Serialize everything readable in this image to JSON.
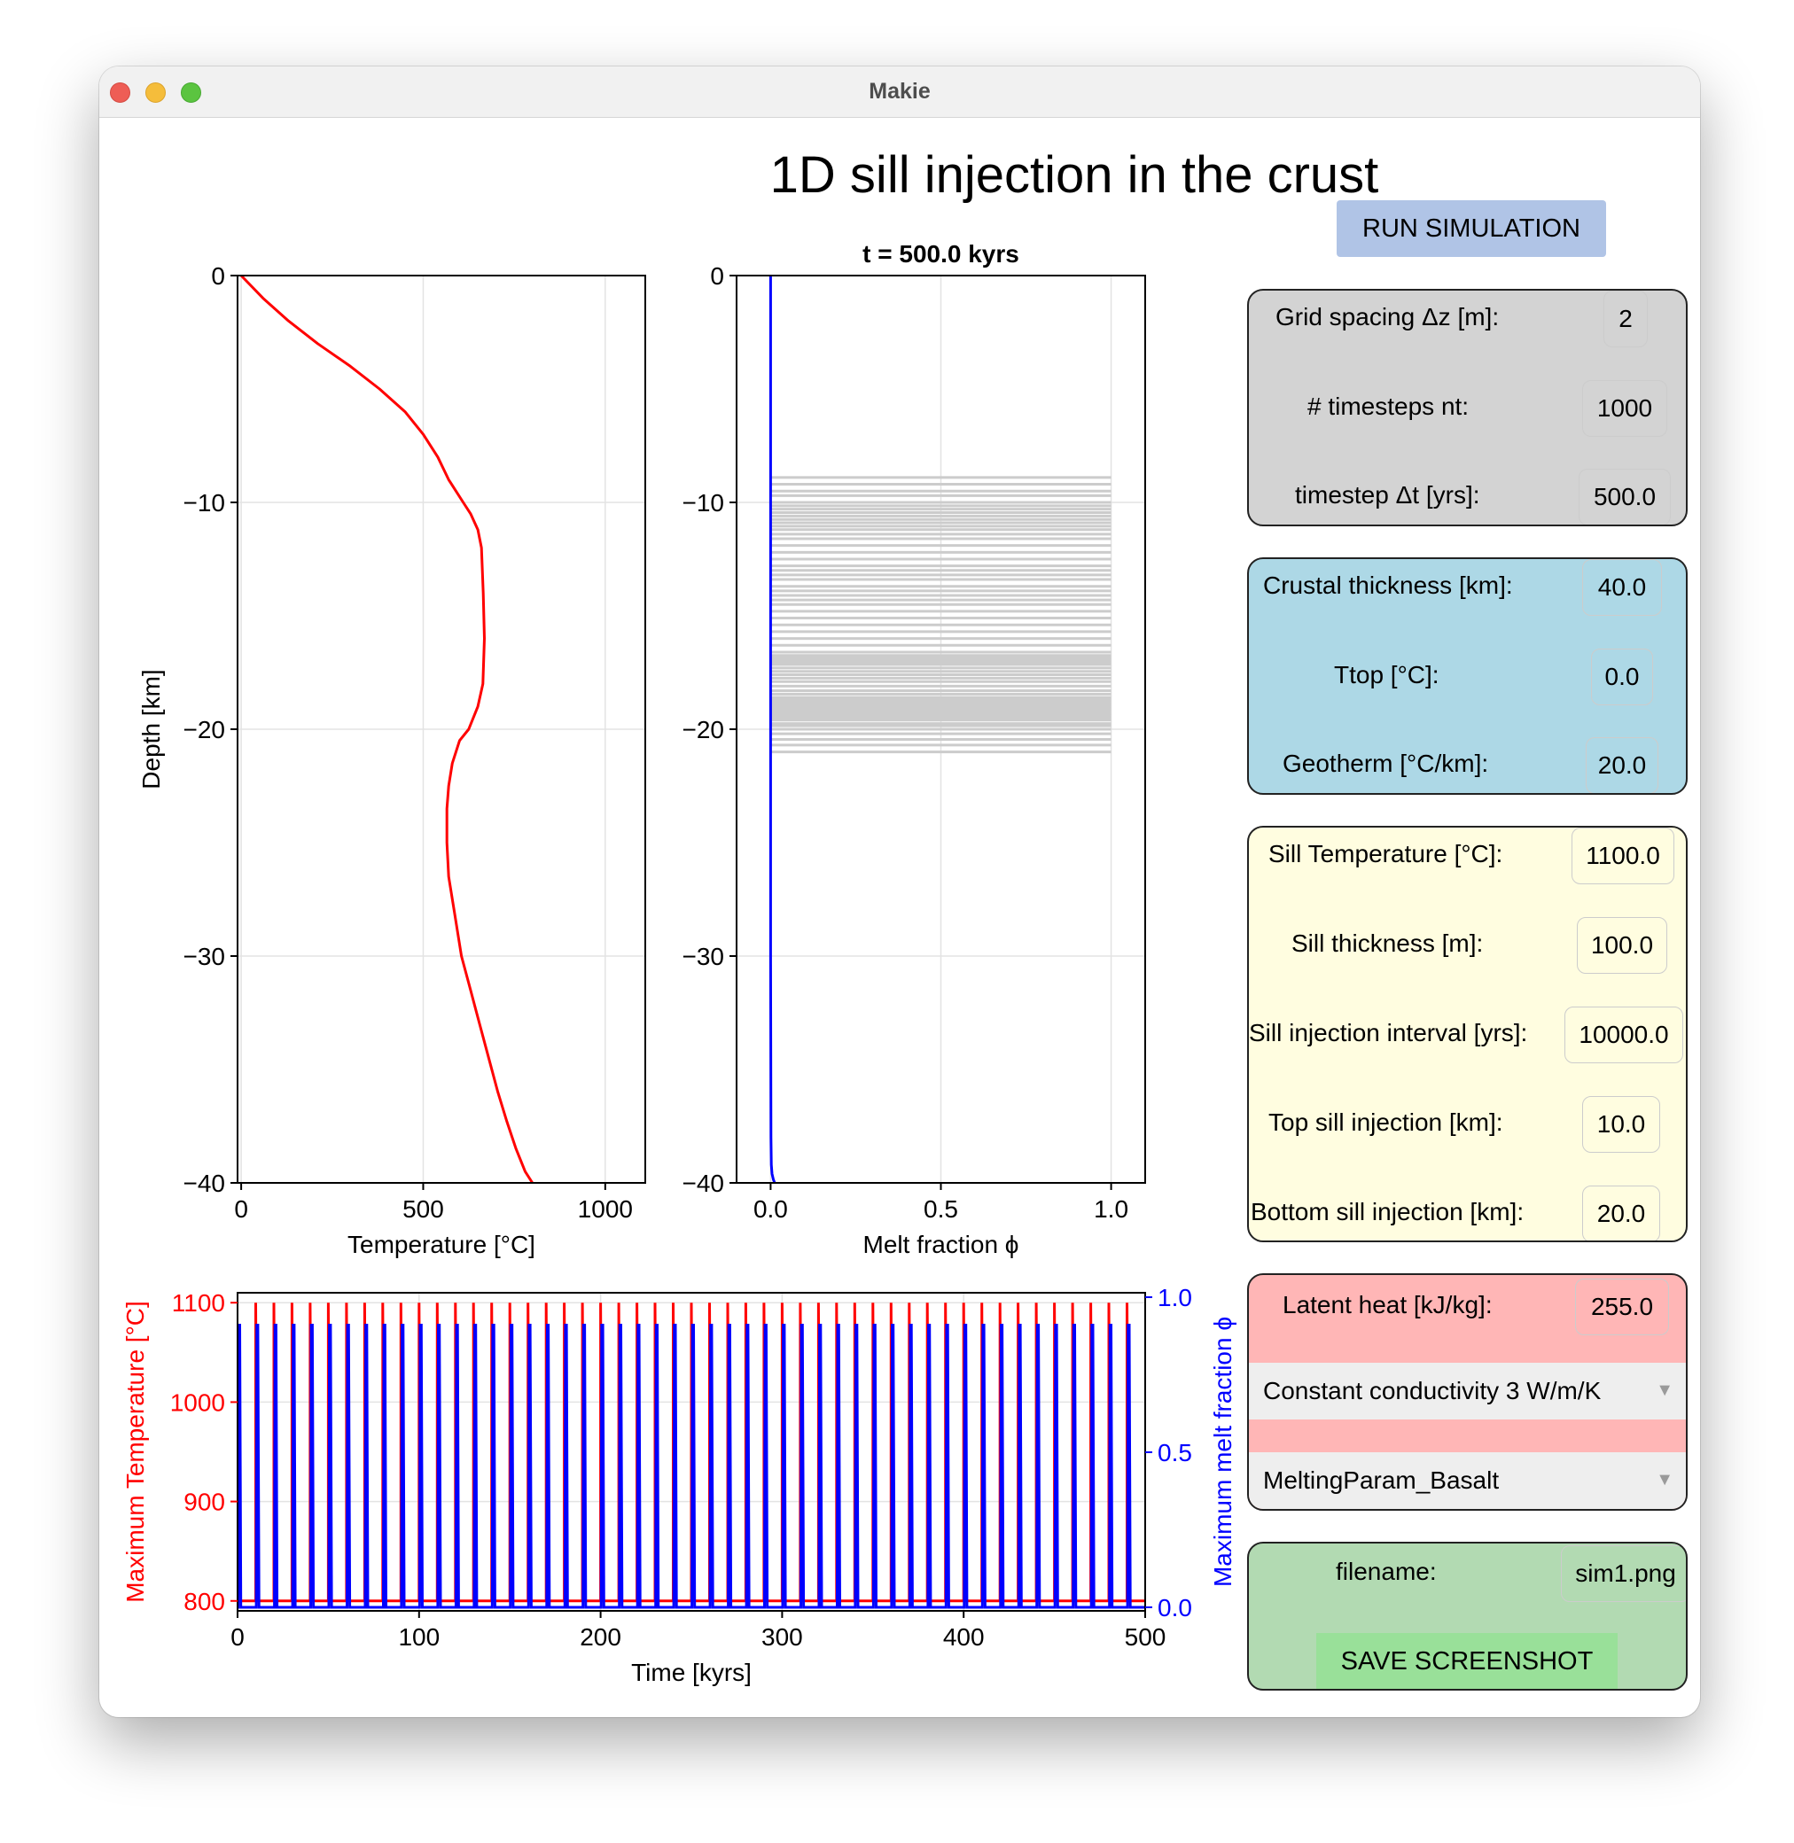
{
  "window": {
    "title": "Makie"
  },
  "main_title": "1D sill injection in the crust",
  "run_button": "RUN SIMULATION",
  "grid_panel": {
    "grid_spacing_label": "Grid spacing Δz [m]:",
    "grid_spacing_value": "2",
    "timesteps_label": "# timesteps nt:",
    "timesteps_value": "1000",
    "timestep_label": "timestep Δt [yrs]:",
    "timestep_value": "500.0",
    "color": "#d3d3d3"
  },
  "crust_panel": {
    "thickness_label": "Crustal thickness [km]:",
    "thickness_value": "40.0",
    "ttop_label": "Ttop [°C]:",
    "ttop_value": "0.0",
    "geotherm_label": "Geotherm [°C/km]:",
    "geotherm_value": "20.0",
    "color": "#add8e6"
  },
  "sill_panel": {
    "temp_label": "Sill Temperature [°C]:",
    "temp_value": "1100.0",
    "thickness_label": "Sill thickness [m]:",
    "thickness_value": "100.0",
    "interval_label": "Sill injection interval [yrs]:",
    "interval_value": "10000.0",
    "top_label": "Top sill injection [km]:",
    "top_value": "10.0",
    "bottom_label": "Bottom sill injection [km]:",
    "bottom_value": "20.0",
    "color": "#fffde0"
  },
  "material_panel": {
    "latent_label": "Latent heat [kJ/kg]:",
    "latent_value": "255.0",
    "conductivity_selected": "Constant conductivity 3 W/m/K",
    "melting_selected": "MeltingParam_Basalt",
    "color": "#ffb6b6"
  },
  "save_panel": {
    "filename_label": "filename:",
    "filename_value": "sim1.png",
    "save_button": "SAVE SCREENSHOT",
    "color": "#b2dab2"
  },
  "chart_data": [
    {
      "type": "line",
      "title": "",
      "xlabel": "Temperature [°C]",
      "ylabel": "Depth [km]",
      "xlim": [
        -10,
        1110
      ],
      "ylim": [
        -40,
        0
      ],
      "xticks": [
        "0",
        "500",
        "1000"
      ],
      "yticks": [
        "0",
        "−10",
        "−20",
        "−30",
        "−40"
      ],
      "grid": true,
      "color": "#ff0000",
      "series": [
        {
          "x": [
            0,
            60,
            130,
            210,
            300,
            380,
            450,
            500,
            540,
            570,
            590,
            610,
            630,
            650,
            660,
            665,
            668,
            664,
            650,
            625,
            600,
            580,
            570,
            565,
            565,
            570,
            585,
            605,
            630,
            655,
            680,
            705,
            730,
            755,
            780,
            800
          ],
          "y": [
            0,
            -1,
            -2,
            -3,
            -4,
            -5,
            -6,
            -7,
            -8,
            -9,
            -9.5,
            -10,
            -10.5,
            -11.2,
            -12,
            -14,
            -16,
            -18,
            -19,
            -20,
            -20.5,
            -21.5,
            -22.5,
            -23.5,
            -25,
            -26.5,
            -28,
            -30,
            -31.5,
            -33,
            -34.5,
            -36,
            -37.3,
            -38.5,
            -39.5,
            -40
          ]
        }
      ]
    },
    {
      "type": "line",
      "title": "t = 500.0 kyrs",
      "xlabel": "Melt fraction ϕ",
      "ylabel": "",
      "xlim": [
        -0.1,
        1.1
      ],
      "ylim": [
        -40,
        0
      ],
      "xticks": [
        "0.0",
        "0.5",
        "1.0"
      ],
      "yticks": [
        "0",
        "−10",
        "−20",
        "−30",
        "−40"
      ],
      "grid": true,
      "series": [
        {
          "name": "",
          "color": "#0000ff",
          "x": [
            0,
            0,
            0,
            0,
            0.001,
            0.002,
            0.004,
            0.008,
            0.012
          ],
          "y": [
            0,
            -10,
            -20,
            -30,
            -38,
            -39.2,
            -39.6,
            -39.85,
            -40
          ]
        }
      ],
      "sill_lines": {
        "color": "#cccccc",
        "x_start": 0,
        "x_end": 1.0,
        "depths": [
          -8.9,
          -9.2,
          -9.5,
          -9.7,
          -10.0,
          -10.15,
          -10.3,
          -10.45,
          -10.6,
          -10.75,
          -10.9,
          -11.05,
          -11.2,
          -11.4,
          -11.6,
          -11.9,
          -12.2,
          -12.5,
          -12.8,
          -13.0,
          -13.2,
          -13.4,
          -13.7,
          -13.9,
          -14.1,
          -14.3,
          -14.5,
          -14.8,
          -15.1,
          -15.4,
          -15.7,
          -16.0,
          -16.3,
          -16.6,
          -16.75,
          -16.85,
          -16.95,
          -17.05,
          -17.15,
          -17.3,
          -17.45,
          -17.6,
          -17.75,
          -17.9,
          -18.1,
          -18.3,
          -18.45,
          -18.6,
          -18.7,
          -18.8,
          -18.9,
          -19.0,
          -19.1,
          -19.2,
          -19.3,
          -19.4,
          -19.5,
          -19.6,
          -19.75,
          -19.85,
          -20.0,
          -20.2,
          -20.45,
          -20.7,
          -21.0
        ]
      }
    },
    {
      "type": "line",
      "title": "",
      "xlabel": "Time [kyrs]",
      "ylabel": "Maximum Temperature [°C]",
      "ylabel_right": "Maximum melt fraction ϕ",
      "xlim": [
        0,
        500
      ],
      "ylim": [
        790,
        1110
      ],
      "ylim_right": [
        0,
        1.0
      ],
      "xticks": [
        "0",
        "100",
        "200",
        "300",
        "400",
        "500"
      ],
      "yticks": [
        "1100",
        "1000",
        "900",
        "800"
      ],
      "yticks_right": [
        "1.0",
        "0.5",
        "0.0"
      ],
      "grid": true,
      "series": [
        {
          "name": "Maximum Temperature [°C]",
          "color": "#ff0000",
          "baseline": 800,
          "peak": 1100,
          "interval": 10,
          "start": 10,
          "end": 490
        },
        {
          "name": "Maximum melt fraction ϕ",
          "color": "#0000ff",
          "baseline": 0.0,
          "peak": 0.91,
          "interval": 10,
          "start": 0,
          "end": 490
        }
      ]
    }
  ]
}
